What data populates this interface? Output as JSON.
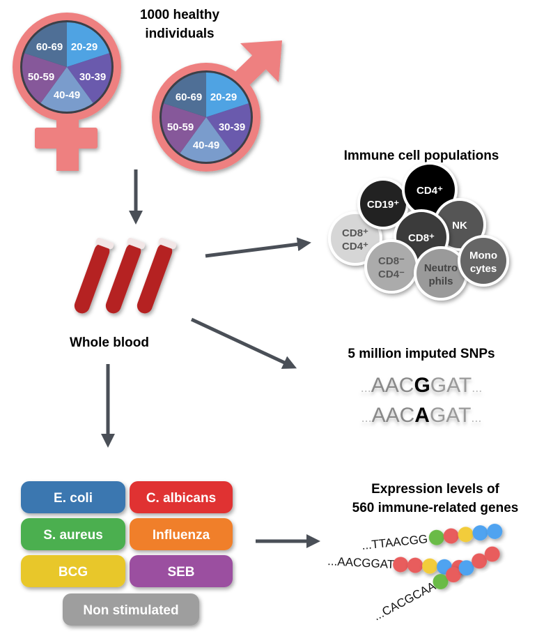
{
  "cohort": {
    "title_line1": "1000 healthy",
    "title_line2": "individuals",
    "symbol_color": "#ee8080",
    "age_groups": [
      {
        "label": "20-29",
        "color": "#4fa3e3"
      },
      {
        "label": "30-39",
        "color": "#6a5aad"
      },
      {
        "label": "40-49",
        "color": "#7a9ccc"
      },
      {
        "label": "50-59",
        "color": "#86589a"
      },
      {
        "label": "60-69",
        "color": "#4f6f96"
      }
    ]
  },
  "blood": {
    "label": "Whole blood",
    "tube_color": "#b52020"
  },
  "cells": {
    "title": "Immune cell populations",
    "items": [
      {
        "label": "CD8⁺",
        "label2": "CD4⁺",
        "color": "#d6d6d6",
        "text": "#555"
      },
      {
        "label": "CD19⁺",
        "label2": "",
        "color": "#222222",
        "text": "#fff"
      },
      {
        "label": "CD4⁺",
        "label2": "",
        "color": "#000000",
        "text": "#fff"
      },
      {
        "label": "NK",
        "label2": "",
        "color": "#555555",
        "text": "#fff"
      },
      {
        "label": "CD8⁺",
        "label2": "",
        "color": "#3a3a3a",
        "text": "#fff"
      },
      {
        "label": "CD8⁻",
        "label2": "CD4⁻",
        "color": "#ababab",
        "text": "#555"
      },
      {
        "label": "Neutro",
        "label2": "phils",
        "color": "#9a9a9a",
        "text": "#444"
      },
      {
        "label": "Mono",
        "label2": "cytes",
        "color": "#666666",
        "text": "#fff"
      }
    ]
  },
  "snps": {
    "title": "5 million imputed SNPs",
    "seq1": {
      "prefix": "...",
      "before": "AAC",
      "variant": "G",
      "after": "GAT",
      "suffix": "..."
    },
    "seq2": {
      "prefix": "...",
      "before": "AAC",
      "variant": "A",
      "after": "GAT",
      "suffix": "..."
    }
  },
  "stimuli": [
    {
      "label": "E. coli",
      "color": "#3a77b0"
    },
    {
      "label": "C. albicans",
      "color": "#e03030"
    },
    {
      "label": "S. aureus",
      "color": "#4caf50"
    },
    {
      "label": "Influenza",
      "color": "#f07f2a"
    },
    {
      "label": "BCG",
      "color": "#e8c72a"
    },
    {
      "label": "SEB",
      "color": "#9b4fa0"
    },
    {
      "label": "Non stimulated",
      "color": "#9e9e9e"
    }
  ],
  "expression": {
    "title_line1": "Expression levels of",
    "title_line2": "560 immune-related genes",
    "strands": [
      {
        "seq": "...TTAACGG",
        "beads": [
          "#6bbb47",
          "#e85d5d",
          "#f2cc3a",
          "#4fa3f0",
          "#4fa3f0"
        ]
      },
      {
        "seq": "...AACGGAT",
        "beads": [
          "#e85d5d",
          "#e85d5d",
          "#f2cc3a",
          "#4fa3f0",
          "#e85d5d"
        ]
      },
      {
        "seq": "...CACGCAA",
        "beads": [
          "#6bbb47",
          "#e85d5d",
          "#4fa3f0",
          "#e85d5d",
          "#e85d5d"
        ]
      }
    ]
  },
  "arrow_color": "#4a4f57"
}
